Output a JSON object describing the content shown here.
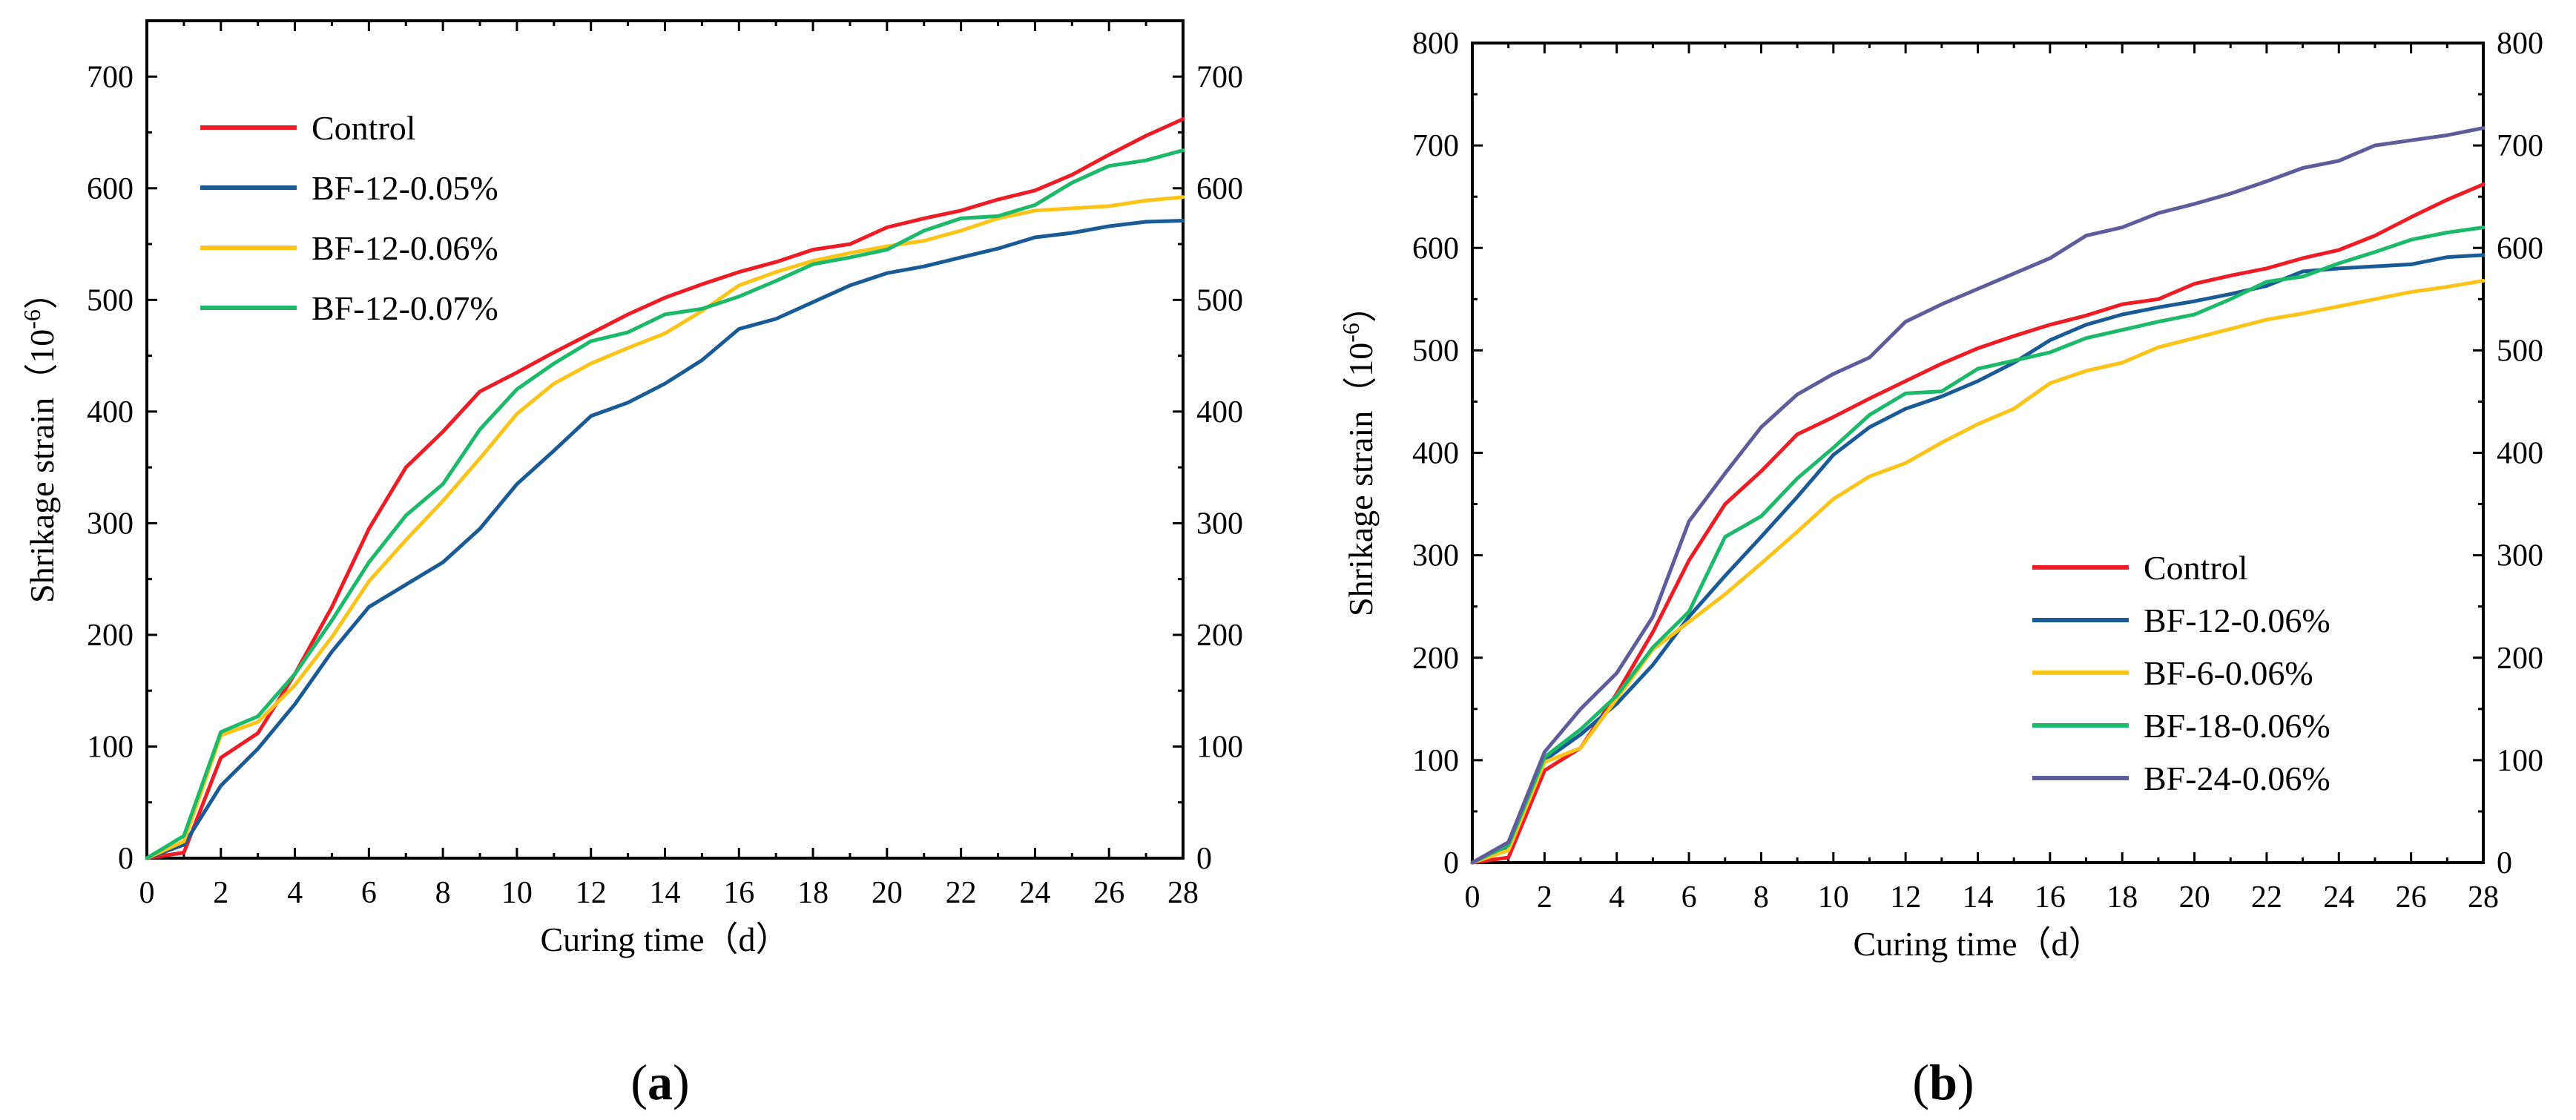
{
  "panels": [
    {
      "label": "a",
      "chart_data": {
        "type": "line",
        "title": "",
        "xlabel": "Curing time（d）",
        "ylabel": "Shrikage strain（10",
        "ylabel_exponent": "-6",
        "ylabel_suffix": "）",
        "xlim": [
          0,
          28
        ],
        "ylim": [
          0,
          750
        ],
        "xticks": [
          0,
          2,
          4,
          6,
          8,
          10,
          12,
          14,
          16,
          18,
          20,
          22,
          24,
          26,
          28
        ],
        "yticks": [
          0,
          100,
          200,
          300,
          400,
          500,
          600,
          700
        ],
        "right_axis": true,
        "grid": false,
        "legend_position": "top-left",
        "x": [
          0,
          1,
          2,
          3,
          4,
          5,
          6,
          7,
          8,
          9,
          10,
          11,
          12,
          13,
          14,
          15,
          16,
          17,
          18,
          19,
          20,
          21,
          22,
          23,
          24,
          25,
          26,
          27,
          28
        ],
        "series": [
          {
            "name": "Control",
            "color": "#ee1c25",
            "values": [
              0,
              5,
              90,
              112,
              165,
              225,
              295,
              350,
              382,
              418,
              435,
              453,
              470,
              487,
              502,
              514,
              525,
              534,
              545,
              550,
              565,
              573,
              580,
              590,
              598,
              612,
              630,
              647,
              662
            ]
          },
          {
            "name": "BF-12-0.05%",
            "color": "#1a5b96",
            "values": [
              0,
              12,
              65,
              98,
              138,
              185,
              225,
              245,
              265,
              295,
              335,
              365,
              396,
              408,
              425,
              446,
              474,
              483,
              498,
              513,
              524,
              530,
              538,
              546,
              556,
              560,
              566,
              570,
              571
            ]
          },
          {
            "name": "BF-12-0.06%",
            "color": "#fcc419",
            "values": [
              0,
              15,
              110,
              122,
              155,
              198,
              248,
              285,
              320,
              358,
              398,
              425,
              443,
              457,
              470,
              490,
              513,
              525,
              535,
              542,
              548,
              553,
              562,
              573,
              580,
              582,
              584,
              589,
              592
            ]
          },
          {
            "name": "BF-12-0.07%",
            "color": "#1cb96a",
            "values": [
              0,
              20,
              113,
              127,
              165,
              213,
              265,
              307,
              335,
              384,
              420,
              443,
              463,
              471,
              487,
              492,
              503,
              517,
              532,
              538,
              545,
              562,
              573,
              575,
              585,
              605,
              620,
              625,
              634
            ]
          }
        ]
      }
    },
    {
      "label": "b",
      "chart_data": {
        "type": "line",
        "title": "",
        "xlabel": "Curing time（d）",
        "ylabel": "Shrikage strain（10",
        "ylabel_exponent": "-6",
        "ylabel_suffix": "）",
        "xlim": [
          0,
          28
        ],
        "ylim": [
          0,
          800
        ],
        "xticks": [
          0,
          2,
          4,
          6,
          8,
          10,
          12,
          14,
          16,
          18,
          20,
          22,
          24,
          26,
          28
        ],
        "yticks": [
          0,
          100,
          200,
          300,
          400,
          500,
          600,
          700,
          800
        ],
        "right_axis": true,
        "grid": false,
        "legend_position": "bottom-right",
        "x": [
          0,
          1,
          2,
          3,
          4,
          5,
          6,
          7,
          8,
          9,
          10,
          11,
          12,
          13,
          14,
          15,
          16,
          17,
          18,
          19,
          20,
          21,
          22,
          23,
          24,
          25,
          26,
          27,
          28
        ],
        "series": [
          {
            "name": "Control",
            "color": "#ee1c25",
            "values": [
              0,
              5,
              90,
              112,
              165,
              225,
              295,
              350,
              382,
              418,
              435,
              453,
              470,
              487,
              502,
              514,
              525,
              534,
              545,
              550,
              565,
              573,
              580,
              590,
              598,
              612,
              630,
              647,
              662
            ]
          },
          {
            "name": "BF-12-0.06%",
            "color": "#1a5b96",
            "values": [
              0,
              15,
              100,
              125,
              155,
              193,
              240,
              280,
              318,
              357,
              398,
              425,
              443,
              455,
              470,
              488,
              510,
              525,
              535,
              542,
              548,
              555,
              563,
              577,
              580,
              582,
              584,
              591,
              593
            ]
          },
          {
            "name": "BF-6-0.06%",
            "color": "#fcc419",
            "values": [
              0,
              12,
              98,
              112,
              160,
              208,
              235,
              262,
              292,
              323,
              355,
              377,
              390,
              410,
              428,
              443,
              468,
              480,
              488,
              503,
              512,
              521,
              530,
              536,
              543,
              550,
              557,
              562,
              568
            ]
          },
          {
            "name": "BF-18-0.06%",
            "color": "#1cb96a",
            "values": [
              0,
              17,
              103,
              130,
              163,
              210,
              245,
              318,
              338,
              375,
              405,
              437,
              458,
              460,
              482,
              490,
              498,
              512,
              520,
              528,
              535,
              550,
              567,
              572,
              585,
              596,
              608,
              615,
              620
            ]
          },
          {
            "name": "BF-24-0.06%",
            "color": "#5f5c9b",
            "values": [
              0,
              20,
              108,
              150,
              185,
              240,
              333,
              380,
              425,
              457,
              477,
              493,
              528,
              545,
              560,
              575,
              590,
              612,
              620,
              634,
              643,
              653,
              665,
              678,
              685,
              700,
              705,
              710,
              717
            ]
          }
        ]
      }
    }
  ]
}
